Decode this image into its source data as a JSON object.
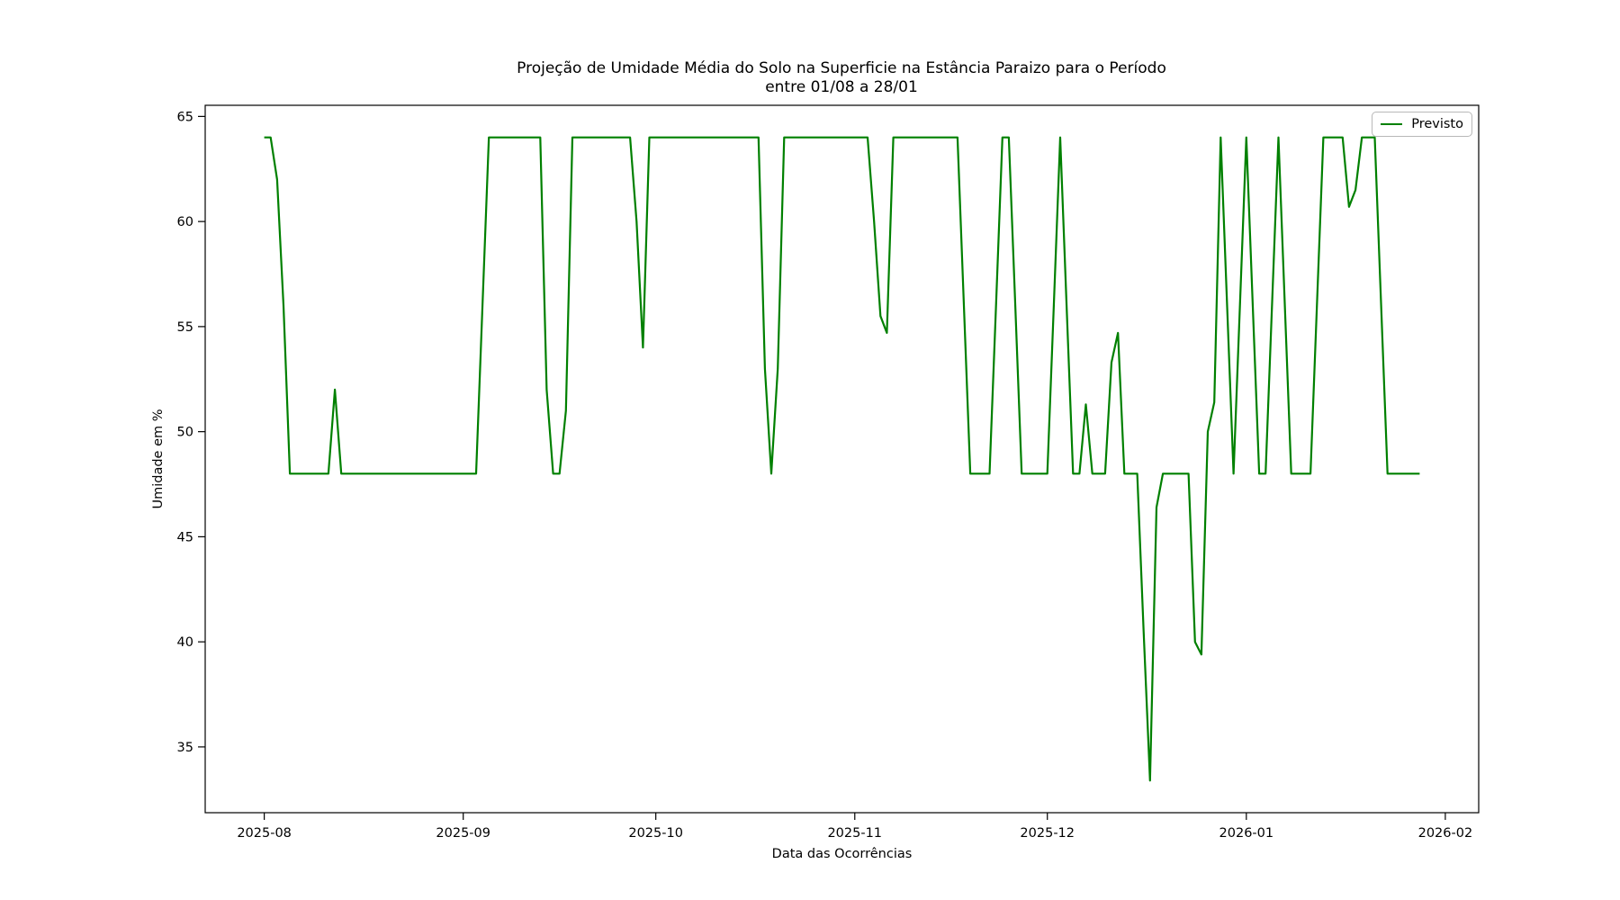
{
  "window": {
    "background": "#ffffff"
  },
  "chart_data": {
    "type": "line",
    "title": "Projeção de Umidade Média do Solo na Superficie na Estância Paraizo para o Período entre 01/08 a 28/01",
    "title_line1": "Projeção de Umidade Média do Solo na Superficie na Estância Paraizo para o Período",
    "title_line2": "entre 01/08 a 28/01",
    "xlabel": "Data das Ocorrências",
    "ylabel": "Umidade em %",
    "x_unit": "days since 2025-08-01",
    "xlim": [
      -9.2,
      189.2
    ],
    "ylim": [
      31.87,
      65.53
    ],
    "grid": false,
    "axis_color": "#000000",
    "y_ticks": [
      35,
      40,
      45,
      50,
      55,
      60,
      65
    ],
    "x_ticks": [
      {
        "day": 0,
        "label": "2025-08"
      },
      {
        "day": 31,
        "label": "2025-09"
      },
      {
        "day": 61,
        "label": "2025-10"
      },
      {
        "day": 92,
        "label": "2025-11"
      },
      {
        "day": 122,
        "label": "2025-12"
      },
      {
        "day": 153,
        "label": "2026-01"
      },
      {
        "day": 184,
        "label": "2026-02"
      }
    ],
    "legend": {
      "label": "Previsto",
      "position": "upper right"
    },
    "series": [
      {
        "name": "Previsto",
        "color": "#008000",
        "points": [
          [
            0,
            64
          ],
          [
            1,
            64
          ],
          [
            2,
            62
          ],
          [
            3,
            56
          ],
          [
            4,
            48
          ],
          [
            10,
            48
          ],
          [
            11,
            52
          ],
          [
            12,
            48
          ],
          [
            33,
            48
          ],
          [
            34,
            56
          ],
          [
            35,
            64
          ],
          [
            43,
            64
          ],
          [
            44,
            52
          ],
          [
            45,
            48
          ],
          [
            46,
            48
          ],
          [
            47,
            51
          ],
          [
            48,
            64
          ],
          [
            57,
            64
          ],
          [
            58,
            60
          ],
          [
            59,
            54
          ],
          [
            60,
            64
          ],
          [
            77,
            64
          ],
          [
            78,
            53
          ],
          [
            79,
            48
          ],
          [
            80,
            53
          ],
          [
            81,
            64
          ],
          [
            94,
            64
          ],
          [
            95,
            60
          ],
          [
            96,
            55.5
          ],
          [
            97,
            54.7
          ],
          [
            98,
            64
          ],
          [
            108,
            64
          ],
          [
            109,
            56
          ],
          [
            110,
            48
          ],
          [
            113,
            48
          ],
          [
            114,
            56
          ],
          [
            115,
            64
          ],
          [
            116,
            64
          ],
          [
            117,
            56
          ],
          [
            118,
            48
          ],
          [
            122,
            48
          ],
          [
            123,
            56
          ],
          [
            124,
            64
          ],
          [
            125,
            56
          ],
          [
            126,
            48
          ],
          [
            127,
            48
          ],
          [
            128,
            51.3
          ],
          [
            129,
            48
          ],
          [
            131,
            48
          ],
          [
            132,
            53.3
          ],
          [
            133,
            54.7
          ],
          [
            134,
            48
          ],
          [
            136,
            48
          ],
          [
            137,
            40.5
          ],
          [
            138,
            33.4
          ],
          [
            139,
            46.4
          ],
          [
            140,
            48
          ],
          [
            144,
            48
          ],
          [
            145,
            40
          ],
          [
            146,
            39.4
          ],
          [
            147,
            50
          ],
          [
            148,
            51.4
          ],
          [
            149,
            64
          ],
          [
            151,
            48
          ],
          [
            153,
            64
          ],
          [
            155,
            48
          ],
          [
            156,
            48
          ],
          [
            158,
            64
          ],
          [
            160,
            48
          ],
          [
            163,
            48
          ],
          [
            165,
            64
          ],
          [
            168,
            64
          ],
          [
            169,
            60.7
          ],
          [
            170,
            61.5
          ],
          [
            171,
            64
          ],
          [
            173,
            64
          ],
          [
            174,
            56
          ],
          [
            175,
            48
          ],
          [
            180,
            48
          ]
        ]
      }
    ]
  }
}
